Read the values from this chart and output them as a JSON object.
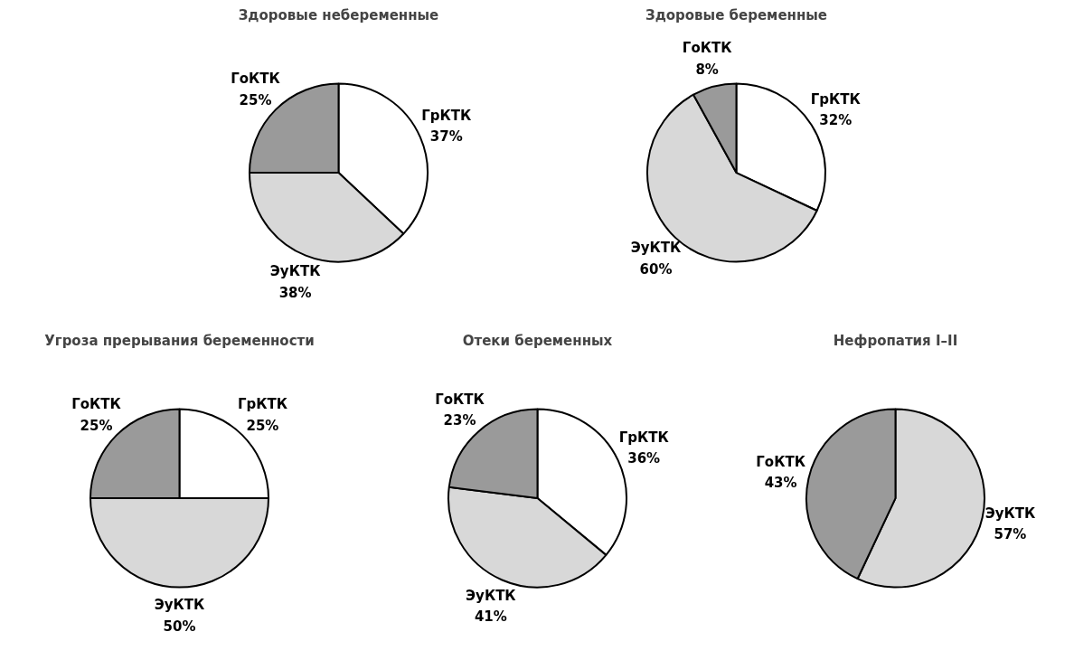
{
  "chart_data": [
    {
      "type": "pie",
      "title": "Здоровые небеременные",
      "categories": [
        "ГрКТК",
        "ЭуКТК",
        "ГоКТК"
      ],
      "values": [
        37,
        38,
        25
      ],
      "value_labels": [
        "37%",
        "38%",
        "25%"
      ],
      "colors": [
        "#ffffff",
        "#d8d8d8",
        "#9a9a9a"
      ]
    },
    {
      "type": "pie",
      "title": "Здоровые беременные",
      "categories": [
        "ГрКТК",
        "ЭуКТК",
        "ГоКТК"
      ],
      "values": [
        32,
        60,
        8
      ],
      "value_labels": [
        "32%",
        "60%",
        "8%"
      ],
      "colors": [
        "#ffffff",
        "#d8d8d8",
        "#9a9a9a"
      ]
    },
    {
      "type": "pie",
      "title": "Угроза прерывания беременности",
      "categories": [
        "ГрКТК",
        "ЭуКТК",
        "ГоКТК"
      ],
      "values": [
        25,
        50,
        25
      ],
      "value_labels": [
        "25%",
        "50%",
        "25%"
      ],
      "colors": [
        "#ffffff",
        "#d8d8d8",
        "#9a9a9a"
      ]
    },
    {
      "type": "pie",
      "title": "Отеки беременных",
      "categories": [
        "ГрКТК",
        "ЭуКТК",
        "ГоКТК"
      ],
      "values": [
        36,
        41,
        23
      ],
      "value_labels": [
        "36%",
        "41%",
        "23%"
      ],
      "colors": [
        "#ffffff",
        "#d8d8d8",
        "#9a9a9a"
      ]
    },
    {
      "type": "pie",
      "title": "Нефропатия I–II",
      "categories": [
        "ЭуКТК",
        "ГоКТК"
      ],
      "values": [
        57,
        43
      ],
      "value_labels": [
        "57%",
        "43%"
      ],
      "colors": [
        "#d8d8d8",
        "#9a9a9a"
      ]
    }
  ]
}
